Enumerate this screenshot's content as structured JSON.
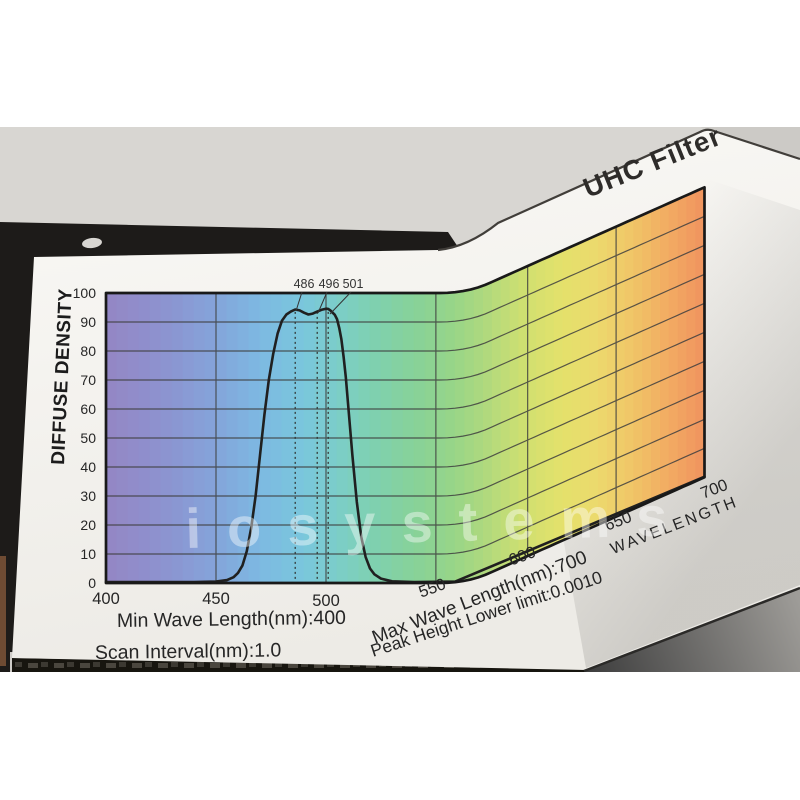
{
  "scene": {
    "background_color": "#ffffff",
    "wall_color": "#d8d6d2",
    "wall_shadow_color": "#cccac6",
    "dark_backdrop_color": "#1d1b19",
    "paper_color": "#f7f6f2",
    "tabletop_dark": "#3c3c3c",
    "tabletop_light": "#a09e9a",
    "grid_color": "#3f3f3f",
    "curve_color": "#202020",
    "text_color": "#262626"
  },
  "texts": {
    "title": "UHC Filter",
    "watermark": "iosystems",
    "y_axis_label": "DIFFUSE DENSITY",
    "x_axis_label": "WAVELENGTH",
    "footer_min": "Min Wave Length(nm):400",
    "footer_scan": "Scan Interval(nm):1.0",
    "footer_max": "Max Wave Length(nm):700",
    "footer_peak": "Peak Height Lower limit:0.0010"
  },
  "chart_data": {
    "type": "line",
    "title": "UHC Filter",
    "xlabel": "WAVELENGTH",
    "ylabel": "DIFFUSE DENSITY",
    "xlim": [
      400,
      700
    ],
    "ylim": [
      0,
      100
    ],
    "xticks": [
      400,
      450,
      500,
      550,
      600,
      650,
      700
    ],
    "yticks": [
      0,
      10,
      20,
      30,
      40,
      50,
      60,
      70,
      80,
      90,
      100
    ],
    "grid": true,
    "legend": false,
    "annotation_wavelengths": [
      486,
      496,
      501
    ],
    "background_palette": [
      [
        400,
        "#9486c4"
      ],
      [
        425,
        "#8d92cf"
      ],
      [
        450,
        "#84a4da"
      ],
      [
        470,
        "#7db9e2"
      ],
      [
        490,
        "#7ac7dc"
      ],
      [
        505,
        "#7bcdc9"
      ],
      [
        520,
        "#7ed0b2"
      ],
      [
        540,
        "#87d299"
      ],
      [
        560,
        "#98d587"
      ],
      [
        580,
        "#b5da7b"
      ],
      [
        600,
        "#d2e070"
      ],
      [
        620,
        "#e4e16b"
      ],
      [
        640,
        "#ecd96d"
      ],
      [
        660,
        "#f0c467"
      ],
      [
        680,
        "#f2ab62"
      ],
      [
        700,
        "#f0935e"
      ]
    ],
    "series": [
      {
        "name": "UHC filter diffuse density",
        "points": [
          [
            400,
            0.3
          ],
          [
            440,
            0.3
          ],
          [
            450,
            0.5
          ],
          [
            455,
            1
          ],
          [
            458,
            2
          ],
          [
            460,
            3.5
          ],
          [
            462,
            6
          ],
          [
            464,
            11
          ],
          [
            466,
            19
          ],
          [
            468,
            30
          ],
          [
            470,
            44
          ],
          [
            472,
            58
          ],
          [
            474,
            70
          ],
          [
            476,
            79
          ],
          [
            478,
            86
          ],
          [
            480,
            90.5
          ],
          [
            482,
            92.6
          ],
          [
            484,
            93.6
          ],
          [
            486,
            94.3
          ],
          [
            488,
            94.0
          ],
          [
            490,
            93.2
          ],
          [
            492,
            92.6
          ],
          [
            494,
            92.9
          ],
          [
            496,
            93.6
          ],
          [
            498,
            94.2
          ],
          [
            500,
            94.6
          ],
          [
            501,
            94.5
          ],
          [
            502,
            94.0
          ],
          [
            504,
            92.5
          ],
          [
            505,
            91
          ],
          [
            506,
            88
          ],
          [
            507,
            84
          ],
          [
            508,
            78
          ],
          [
            509,
            71
          ],
          [
            510,
            62
          ],
          [
            511,
            53
          ],
          [
            512,
            44
          ],
          [
            514,
            28
          ],
          [
            516,
            16
          ],
          [
            518,
            9
          ],
          [
            520,
            5
          ],
          [
            522,
            3
          ],
          [
            525,
            1.5
          ],
          [
            530,
            0.6
          ],
          [
            540,
            0.3
          ],
          [
            560,
            0.2
          ],
          [
            700,
            0.2
          ]
        ]
      }
    ]
  }
}
